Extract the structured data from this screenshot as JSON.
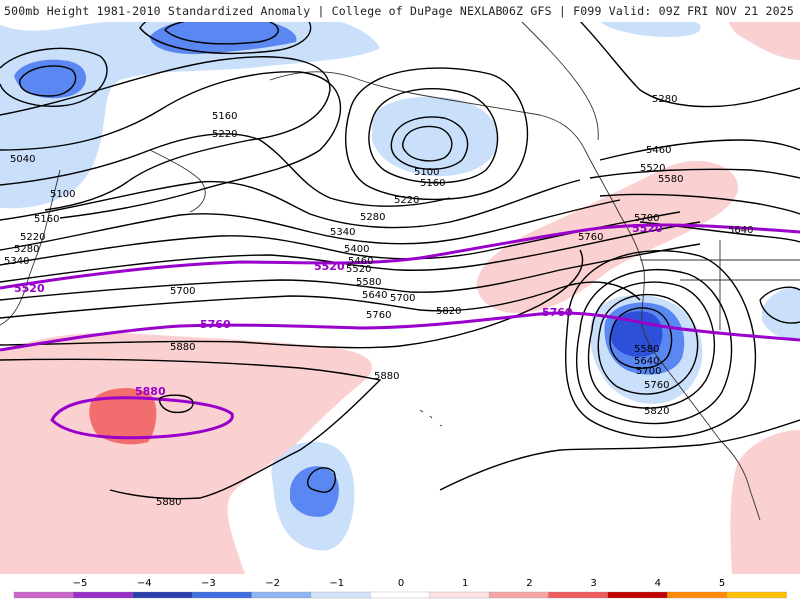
{
  "header": {
    "left_title": "500mb Height 1981-2010 Standardized Anomaly | College of DuPage NEXLAB",
    "right_title": "06Z GFS | F099 Valid: 09Z FRI NOV 21 2025"
  },
  "colors": {
    "light_blue": "#c9dffa",
    "mid_blue": "#5a87f2",
    "dark_blue": "#2e4fd8",
    "light_pink": "#fbd0d0",
    "mid_pink": "#f26e6e",
    "contour": "#000000",
    "purple": "#9900cc"
  },
  "contour_labels": [
    "5040",
    "5100",
    "5160",
    "5220",
    "5280",
    "5340",
    "5160",
    "5220",
    "5100",
    "5160",
    "5220",
    "5280",
    "5340",
    "5400",
    "5460",
    "5520",
    "5580",
    "5640",
    "5700",
    "5760",
    "5820",
    "5700",
    "5880",
    "5880",
    "5880",
    "5280",
    "5460",
    "5520",
    "5580",
    "5700",
    "5640",
    "5760",
    "5580",
    "5640",
    "5700",
    "5760",
    "5820"
  ],
  "anomaly_contours": {
    "label_5520_west": "5520",
    "label_5520_mid": "5520",
    "label_5520_east": "5520",
    "label_5760_west": "5760",
    "label_5760_east": "5760",
    "label_5880": "5880"
  },
  "legend": {
    "ticks": [
      "−5",
      "−4",
      "−3",
      "−2",
      "−1",
      "0",
      "1",
      "2",
      "3",
      "4",
      "5"
    ],
    "colors": [
      "#cc66cc",
      "#9a2ec9",
      "#2a3fae",
      "#3f6fe0",
      "#8fb4f2",
      "#d2e3fa",
      "#ffffff",
      "#fde3e3",
      "#f7a6a6",
      "#ee5c5c",
      "#c00000",
      "#ff8c00",
      "#ffc000"
    ]
  }
}
